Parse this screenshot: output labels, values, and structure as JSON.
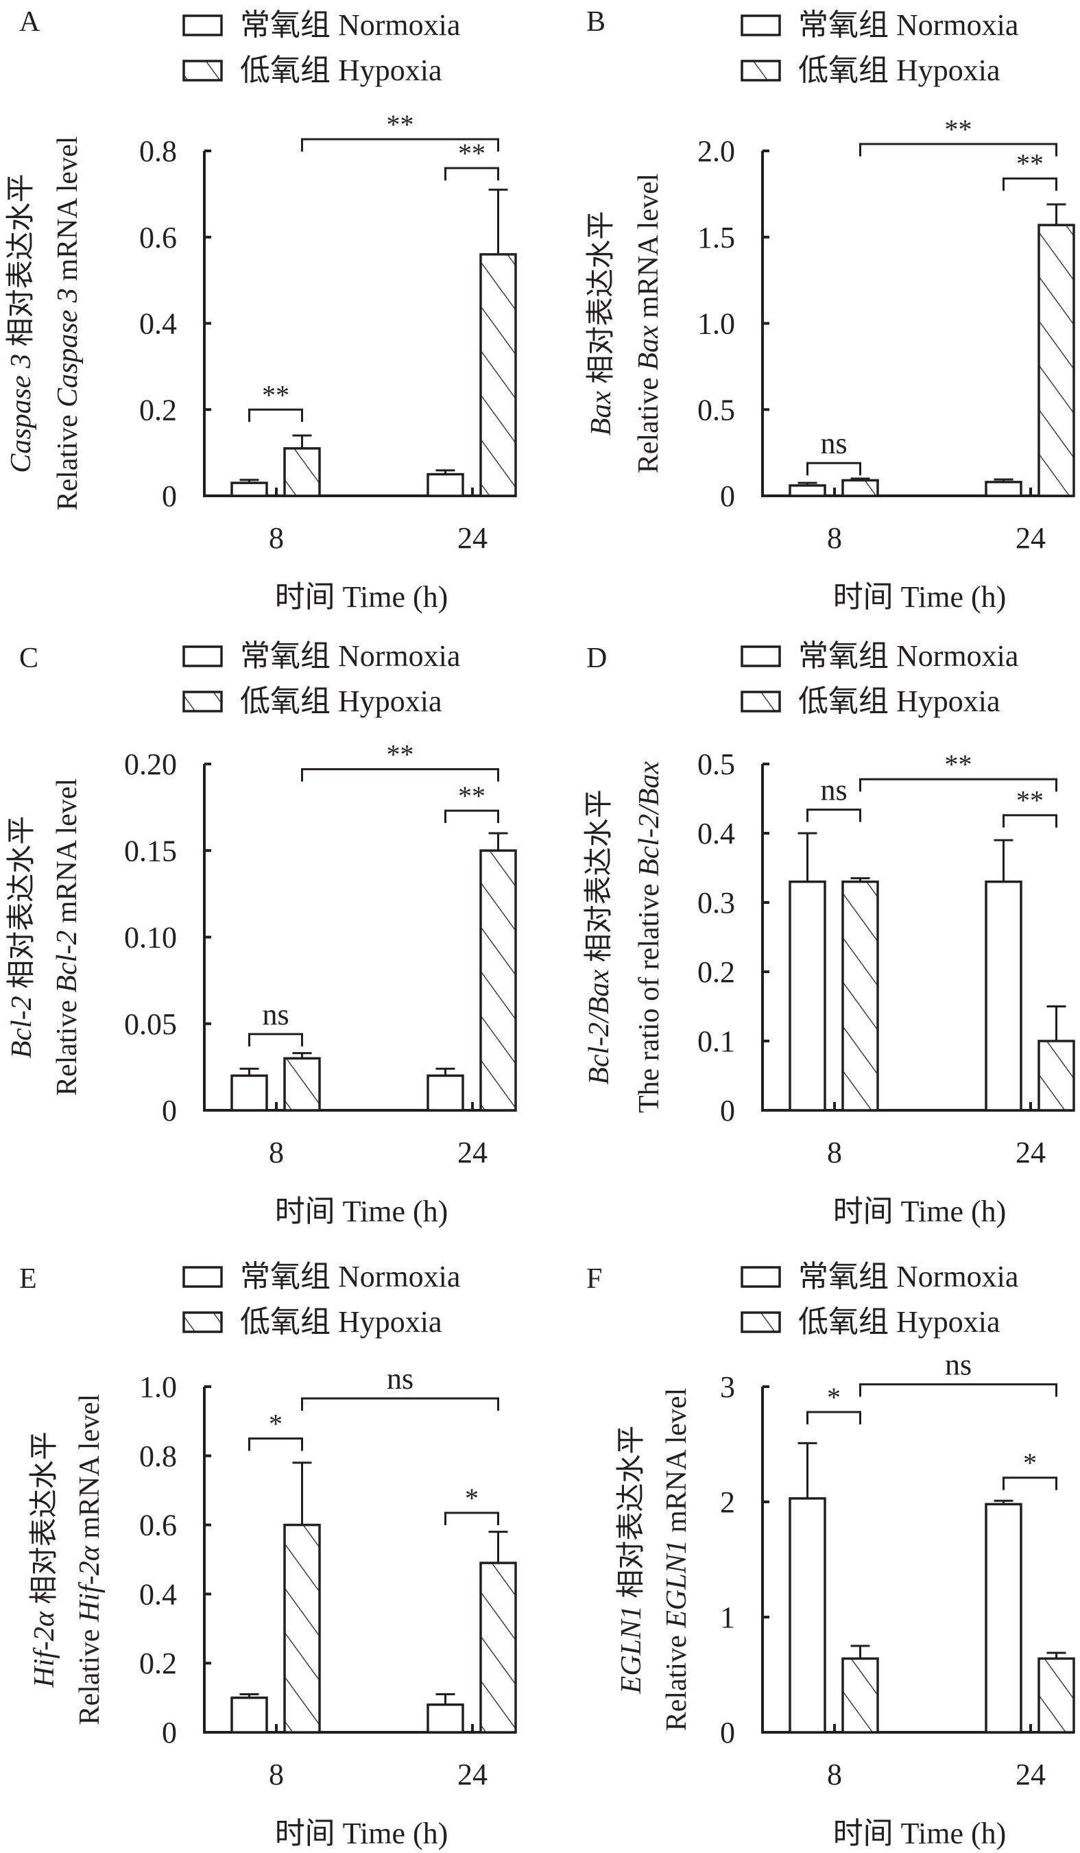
{
  "legend": {
    "normoxia": "常氧组 Normoxia",
    "hypoxia": "低氧组 Hypoxia"
  },
  "colors": {
    "ink": "#231f20",
    "normoxia_fill": "#ffffff",
    "hypoxia_fill": "hatched"
  },
  "chart_data": [
    {
      "panel": "A",
      "type": "bar",
      "categories": [
        "8",
        "24"
      ],
      "xlabel": "时间 Time (h)",
      "ylabel_lines": [
        [
          {
            "text": "Caspase 3",
            "italic": true
          },
          {
            "text": " 相对表达水平",
            "italic": false
          }
        ],
        [
          {
            "text": "Relative ",
            "italic": false
          },
          {
            "text": "Caspase 3",
            "italic": true
          },
          {
            "text": " mRNA level",
            "italic": false
          }
        ]
      ],
      "ylim": [
        0,
        0.8
      ],
      "yticks": [
        0,
        0.2,
        0.4,
        0.6,
        0.8
      ],
      "ytick_labels": [
        "0",
        "0.2",
        "0.4",
        "0.6",
        "0.8"
      ],
      "series": [
        {
          "name": "常氧组 Normoxia",
          "pattern": "open",
          "values": [
            0.03,
            0.05
          ],
          "error_upper": [
            0.037,
            0.059
          ]
        },
        {
          "name": "低氧组 Hypoxia",
          "pattern": "hatched",
          "values": [
            0.11,
            0.56
          ],
          "error_upper": [
            0.14,
            0.71
          ]
        }
      ],
      "significance": [
        {
          "from": [
            0,
            0
          ],
          "to": [
            0,
            1
          ],
          "label": "**",
          "y": 0.2
        },
        {
          "from": [
            0,
            1
          ],
          "to": [
            1,
            1
          ],
          "label": "**",
          "y": 0.827
        },
        {
          "from": [
            1,
            0
          ],
          "to": [
            1,
            1
          ],
          "label": "**",
          "y": 0.76
        }
      ]
    },
    {
      "panel": "B",
      "type": "bar",
      "categories": [
        "8",
        "24"
      ],
      "xlabel": "时间 Time (h)",
      "ylabel_lines": [
        [
          {
            "text": "Bax",
            "italic": true
          },
          {
            "text": " 相对表达水平",
            "italic": false
          }
        ],
        [
          {
            "text": "Relative ",
            "italic": false
          },
          {
            "text": "Bax",
            "italic": true
          },
          {
            "text": " mRNA level",
            "italic": false
          }
        ]
      ],
      "ylim": [
        0,
        2.0
      ],
      "yticks": [
        0,
        0.5,
        1.0,
        1.5,
        2.0
      ],
      "ytick_labels": [
        "0",
        "0.5",
        "1.0",
        "1.5",
        "2.0"
      ],
      "series": [
        {
          "name": "常氧组 Normoxia",
          "pattern": "open",
          "values": [
            0.06,
            0.08
          ],
          "error_upper": [
            0.075,
            0.095
          ]
        },
        {
          "name": "低氧组 Hypoxia",
          "pattern": "hatched",
          "values": [
            0.09,
            1.57
          ],
          "error_upper": [
            0.1,
            1.69
          ]
        }
      ],
      "significance": [
        {
          "from": [
            0,
            0
          ],
          "to": [
            0,
            1
          ],
          "label": "ns",
          "y": 0.19
        },
        {
          "from": [
            0,
            1
          ],
          "to": [
            1,
            1
          ],
          "label": "**",
          "y": 2.04
        },
        {
          "from": [
            1,
            0
          ],
          "to": [
            1,
            1
          ],
          "label": "**",
          "y": 1.84
        }
      ]
    },
    {
      "panel": "C",
      "type": "bar",
      "categories": [
        "8",
        "24"
      ],
      "xlabel": "时间 Time (h)",
      "ylabel_lines": [
        [
          {
            "text": "Bcl-2",
            "italic": true
          },
          {
            "text": " 相对表达水平",
            "italic": false
          }
        ],
        [
          {
            "text": "Relative ",
            "italic": false
          },
          {
            "text": "Bcl-2",
            "italic": true
          },
          {
            "text": " mRNA level",
            "italic": false
          }
        ]
      ],
      "ylim": [
        0,
        0.2
      ],
      "yticks": [
        0,
        0.05,
        0.1,
        0.15,
        0.2
      ],
      "ytick_labels": [
        "0",
        "0.05",
        "0.10",
        "0.15",
        "0.20"
      ],
      "series": [
        {
          "name": "常氧组 Normoxia",
          "pattern": "open",
          "values": [
            0.02,
            0.02
          ],
          "error_upper": [
            0.024,
            0.024
          ]
        },
        {
          "name": "低氧组 Hypoxia",
          "pattern": "hatched",
          "values": [
            0.03,
            0.15
          ],
          "error_upper": [
            0.033,
            0.16
          ]
        }
      ],
      "significance": [
        {
          "from": [
            0,
            0
          ],
          "to": [
            0,
            1
          ],
          "label": "ns",
          "y": 0.044
        },
        {
          "from": [
            0,
            1
          ],
          "to": [
            1,
            1
          ],
          "label": "**",
          "y": 0.197
        },
        {
          "from": [
            1,
            0
          ],
          "to": [
            1,
            1
          ],
          "label": "**",
          "y": 0.173
        }
      ]
    },
    {
      "panel": "D",
      "type": "bar",
      "categories": [
        "8",
        "24"
      ],
      "xlabel": "时间 Time (h)",
      "ylabel_lines": [
        [
          {
            "text": "Bcl-2/Bax",
            "italic": true
          },
          {
            "text": " 相对表达水平",
            "italic": false
          }
        ],
        [
          {
            "text": "The ratio of relative ",
            "italic": false
          },
          {
            "text": "Bcl-2/Bax",
            "italic": true
          }
        ]
      ],
      "ylim": [
        0,
        0.5
      ],
      "yticks": [
        0,
        0.1,
        0.2,
        0.3,
        0.4,
        0.5
      ],
      "ytick_labels": [
        "0",
        "0.1",
        "0.2",
        "0.3",
        "0.4",
        "0.5"
      ],
      "series": [
        {
          "name": "常氧组 Normoxia",
          "pattern": "open",
          "values": [
            0.33,
            0.33
          ],
          "error_upper": [
            0.4,
            0.39
          ]
        },
        {
          "name": "低氧组 Hypoxia",
          "pattern": "hatched",
          "values": [
            0.33,
            0.1
          ],
          "error_upper": [
            0.335,
            0.15
          ]
        }
      ],
      "significance": [
        {
          "from": [
            0,
            0
          ],
          "to": [
            0,
            1
          ],
          "label": "ns",
          "y": 0.434
        },
        {
          "from": [
            0,
            1
          ],
          "to": [
            1,
            1
          ],
          "label": "**",
          "y": 0.478
        },
        {
          "from": [
            1,
            0
          ],
          "to": [
            1,
            1
          ],
          "label": "**",
          "y": 0.426
        }
      ]
    },
    {
      "panel": "E",
      "type": "bar",
      "categories": [
        "8",
        "24"
      ],
      "xlabel": "时间 Time (h)",
      "ylabel_lines": [
        [
          {
            "text": "Hif-2α",
            "italic": true
          },
          {
            "text": " 相对表达水平",
            "italic": false
          }
        ],
        [
          {
            "text": "Relative ",
            "italic": false
          },
          {
            "text": "Hif-2α",
            "italic": true
          },
          {
            "text": " mRNA level",
            "italic": false
          }
        ]
      ],
      "ylim": [
        0,
        1.0
      ],
      "yticks": [
        0,
        0.2,
        0.4,
        0.6,
        0.8,
        1.0
      ],
      "ytick_labels": [
        "0",
        "0.2",
        "0.4",
        "0.6",
        "0.8",
        "1.0"
      ],
      "series": [
        {
          "name": "常氧组 Normoxia",
          "pattern": "open",
          "values": [
            0.1,
            0.08
          ],
          "error_upper": [
            0.11,
            0.11
          ]
        },
        {
          "name": "低氧组 Hypoxia",
          "pattern": "hatched",
          "values": [
            0.6,
            0.49
          ],
          "error_upper": [
            0.78,
            0.58
          ]
        }
      ],
      "significance": [
        {
          "from": [
            0,
            0
          ],
          "to": [
            0,
            1
          ],
          "label": "*",
          "y": 0.85
        },
        {
          "from": [
            0,
            1
          ],
          "to": [
            1,
            1
          ],
          "label": "ns",
          "y": 0.966
        },
        {
          "from": [
            1,
            0
          ],
          "to": [
            1,
            1
          ],
          "label": "*",
          "y": 0.635
        }
      ]
    },
    {
      "panel": "F",
      "type": "bar",
      "categories": [
        "8",
        "24"
      ],
      "xlabel": "时间 Time (h)",
      "ylabel_lines": [
        [
          {
            "text": "EGLN1",
            "italic": true
          },
          {
            "text": " 相对表达水平",
            "italic": false
          }
        ],
        [
          {
            "text": "Relative ",
            "italic": false
          },
          {
            "text": "EGLN1",
            "italic": true
          },
          {
            "text": " mRNA level",
            "italic": false
          }
        ]
      ],
      "ylim": [
        0,
        3
      ],
      "yticks": [
        0,
        1,
        2,
        3
      ],
      "ytick_labels": [
        "0",
        "1",
        "2",
        "3"
      ],
      "series": [
        {
          "name": "常氧组 Normoxia",
          "pattern": "open",
          "values": [
            2.03,
            1.98
          ],
          "error_upper": [
            2.51,
            2.01
          ]
        },
        {
          "name": "低氧组 Hypoxia",
          "pattern": "hatched",
          "values": [
            0.64,
            0.64
          ],
          "error_upper": [
            0.75,
            0.69
          ]
        }
      ],
      "significance": [
        {
          "from": [
            0,
            0
          ],
          "to": [
            0,
            1
          ],
          "label": "*",
          "y": 2.78
        },
        {
          "from": [
            0,
            1
          ],
          "to": [
            1,
            1
          ],
          "label": "ns",
          "y": 3.02
        },
        {
          "from": [
            1,
            0
          ],
          "to": [
            1,
            1
          ],
          "label": "*",
          "y": 2.21
        }
      ]
    }
  ]
}
